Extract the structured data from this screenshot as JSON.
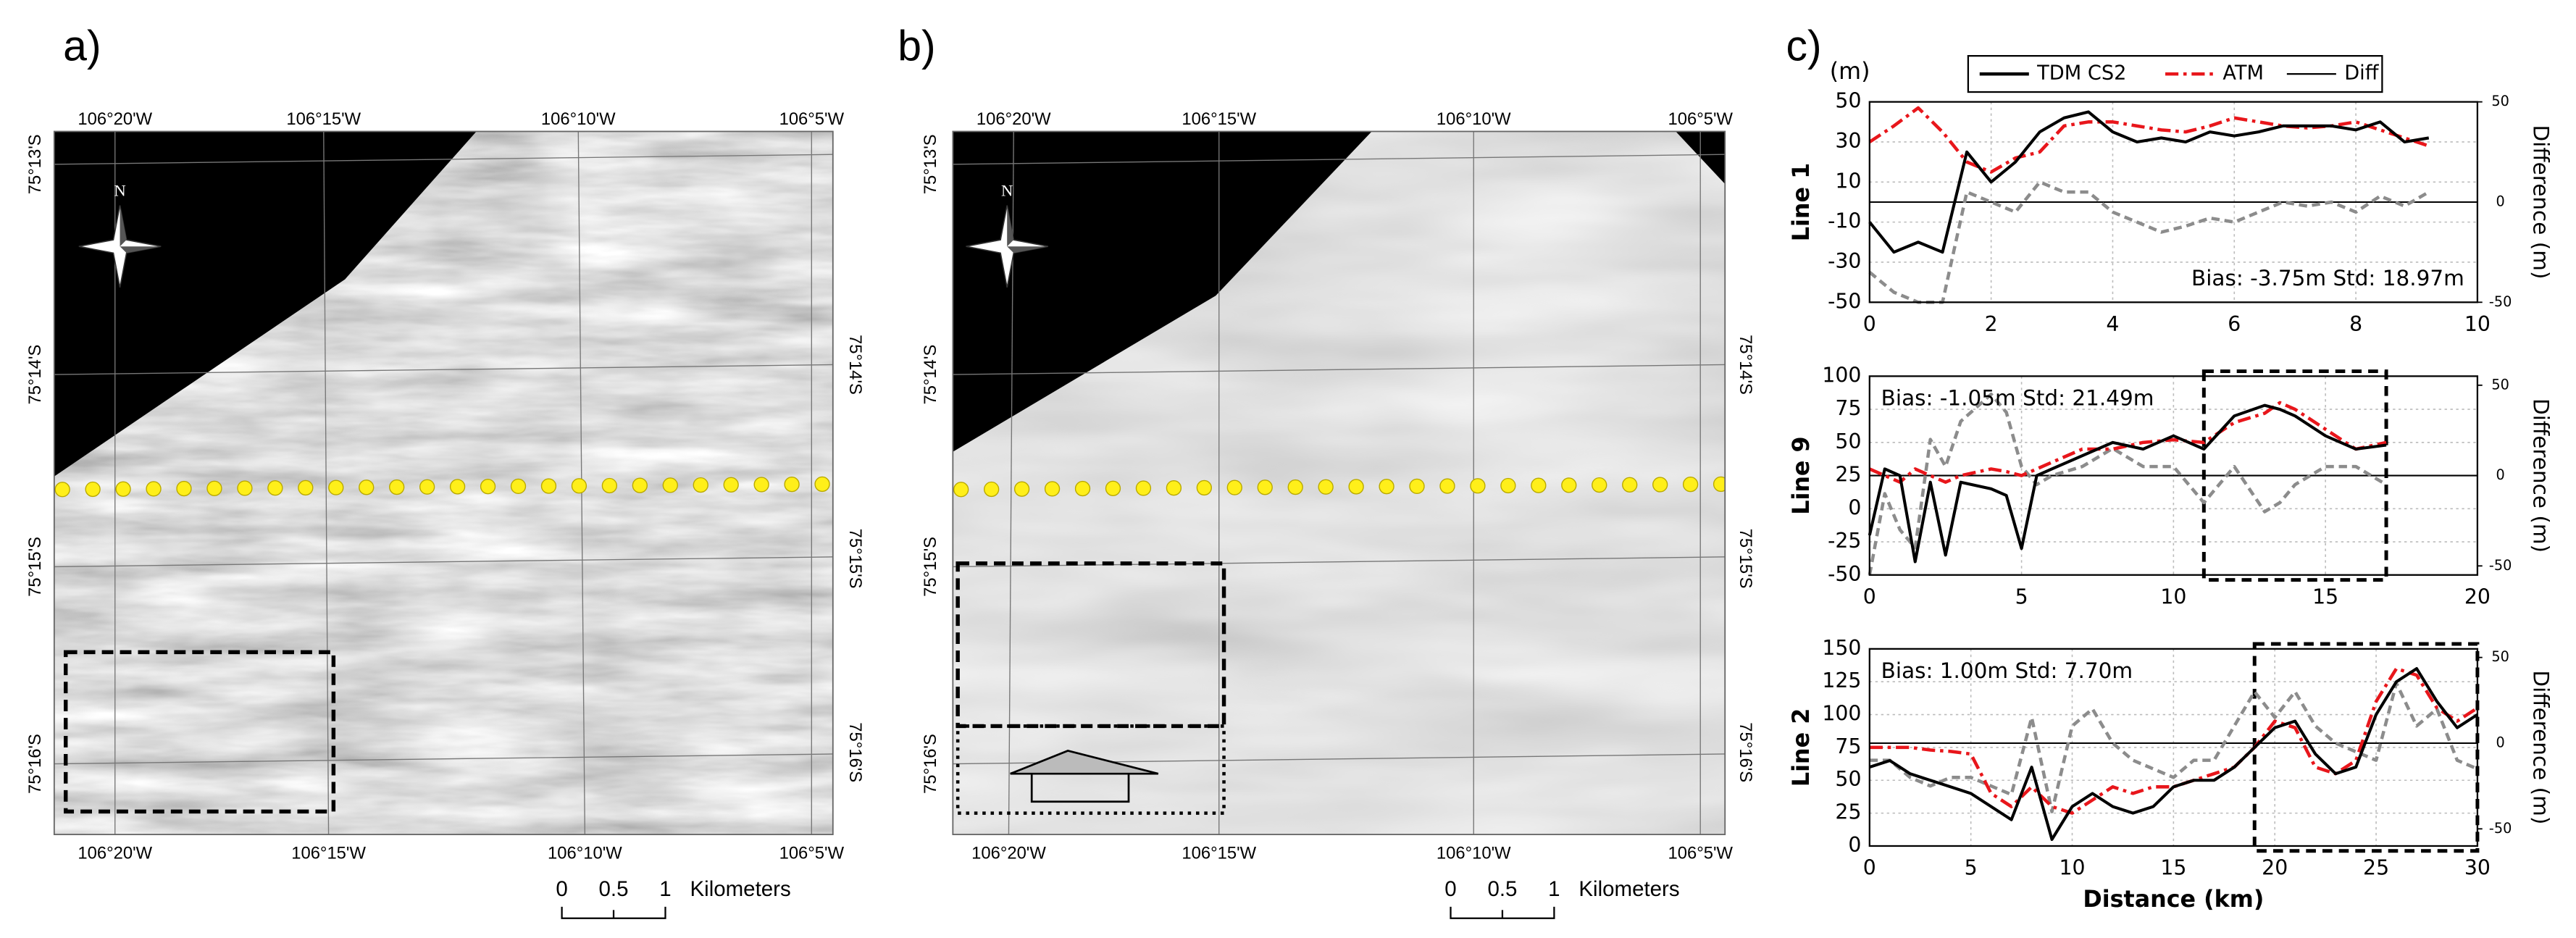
{
  "panels": [
    {
      "label": "a)",
      "top_lon": [
        "106°20'W",
        "106°15'W",
        "106°10'W",
        "106°5'W"
      ],
      "bottom_lon": [
        "106°20'W",
        "106°15'W",
        "106°10'W",
        "106°5'W"
      ],
      "left_lat": [
        "75°13'S",
        "75°14'S",
        "75°15'S",
        "75°16'S"
      ],
      "right_lat": [
        "75°14'S",
        "75°15'S",
        "75°16'S"
      ],
      "north": "N",
      "scale": [
        "0",
        "0.5",
        "1"
      ],
      "scale_unit": "Kilometers"
    },
    {
      "label": "b)",
      "top_lon": [
        "106°20'W",
        "106°15'W",
        "106°10'W",
        "106°5'W"
      ],
      "bottom_lon": [
        "106°20'W",
        "106°15'W",
        "106°10'W",
        "106°5'W"
      ],
      "left_lat": [
        "75°13'S",
        "75°14'S",
        "75°15'S",
        "75°16'S"
      ],
      "right_lat": [
        "75°14'S",
        "75°15'S",
        "75°16'S"
      ],
      "north": "N",
      "scale": [
        "0",
        "0.5",
        "1"
      ],
      "scale_unit": "Kilometers"
    }
  ],
  "chart_label": "c)",
  "chart_data": [
    {
      "type": "line",
      "y_unit": "(m)",
      "ylabel": "Line 1",
      "y2label": "Difference (m)",
      "grid": true,
      "annotation": "Bias: -3.75m Std: 18.97m",
      "xlim": [
        0,
        10
      ],
      "xticks": [
        0,
        2,
        4,
        6,
        8,
        10
      ],
      "ylim": [
        -50,
        50
      ],
      "yticks": [
        -50,
        -30,
        -10,
        10,
        30,
        50
      ],
      "y2lim": [
        -50,
        50
      ],
      "y2ticks": [
        -50,
        0,
        50
      ],
      "x": [
        0,
        0.4,
        0.8,
        1.2,
        1.6,
        2.0,
        2.4,
        2.8,
        3.2,
        3.6,
        4.0,
        4.4,
        4.8,
        5.2,
        5.6,
        6.0,
        6.4,
        6.8,
        7.2,
        7.6,
        8.0,
        8.4,
        8.8,
        9.2
      ],
      "series": [
        {
          "name": "TDM CS2",
          "color": "#000000",
          "style": "solid",
          "values": [
            -10,
            -25,
            -20,
            -25,
            25,
            10,
            20,
            35,
            42,
            45,
            35,
            30,
            32,
            30,
            35,
            33,
            35,
            38,
            38,
            38,
            36,
            40,
            30,
            32
          ]
        },
        {
          "name": "ATM",
          "color": "#e8161b",
          "style": "dash-dot",
          "values": [
            30,
            38,
            47,
            35,
            20,
            15,
            22,
            25,
            38,
            40,
            40,
            38,
            36,
            35,
            38,
            42,
            40,
            38,
            37,
            38,
            40,
            36,
            32,
            28
          ]
        },
        {
          "name": "Diff",
          "color": "#8c8c8c",
          "style": "dash",
          "axis": "y2",
          "values": [
            -35,
            -45,
            -50,
            -50,
            5,
            0,
            -5,
            10,
            5,
            5,
            -5,
            -10,
            -15,
            -12,
            -8,
            -10,
            -5,
            0,
            -2,
            0,
            -5,
            3,
            -2,
            5
          ]
        }
      ]
    },
    {
      "type": "line",
      "ylabel": "Line 9",
      "y2label": "Difference (m)",
      "grid": true,
      "annotation": "Bias: -1.05m Std: 21.49m",
      "highlight": [
        11,
        17
      ],
      "xlim": [
        0,
        20
      ],
      "xticks": [
        0,
        5,
        10,
        15,
        20
      ],
      "ylim": [
        -50,
        100
      ],
      "yticks": [
        -50,
        -25,
        0,
        25,
        50,
        75,
        100
      ],
      "y2lim": [
        -55,
        55
      ],
      "y2ticks": [
        -50,
        0,
        50
      ],
      "x": [
        0,
        0.5,
        1,
        1.5,
        2,
        2.5,
        3,
        4,
        4.5,
        5,
        5.5,
        6,
        7,
        8,
        9,
        10,
        11,
        12,
        13,
        13.5,
        14,
        15,
        16,
        17
      ],
      "series": [
        {
          "color": "#000000",
          "style": "solid",
          "values": [
            -20,
            30,
            25,
            -40,
            20,
            -35,
            20,
            15,
            10,
            -30,
            25,
            30,
            40,
            50,
            45,
            55,
            45,
            70,
            78,
            75,
            70,
            55,
            45,
            48
          ]
        },
        {
          "color": "#e8161b",
          "style": "dash-dot",
          "values": [
            30,
            25,
            20,
            30,
            25,
            20,
            25,
            30,
            28,
            25,
            30,
            35,
            45,
            45,
            50,
            52,
            50,
            65,
            72,
            80,
            75,
            60,
            45,
            50
          ]
        },
        {
          "color": "#8c8c8c",
          "style": "dash",
          "axis": "y2",
          "values": [
            -55,
            -10,
            -30,
            -40,
            20,
            5,
            30,
            45,
            35,
            5,
            -5,
            0,
            5,
            15,
            5,
            5,
            -15,
            5,
            -20,
            -15,
            -5,
            5,
            5,
            -5
          ]
        }
      ]
    },
    {
      "type": "line",
      "ylabel": "Line 2",
      "y2label": "Difference (m)",
      "xlabel": "Distance (km)",
      "grid": true,
      "annotation": "Bias: 1.00m Std: 7.70m",
      "highlight": [
        19,
        30
      ],
      "xlim": [
        0,
        30
      ],
      "xticks": [
        0,
        5,
        10,
        15,
        20,
        25,
        30
      ],
      "ylim": [
        0,
        150
      ],
      "yticks": [
        0,
        25,
        50,
        75,
        100,
        125,
        150
      ],
      "y2lim": [
        -60,
        55
      ],
      "y2ticks": [
        -50,
        0,
        50
      ],
      "x": [
        0,
        1,
        2,
        3,
        4,
        5,
        6,
        7,
        8,
        9,
        10,
        11,
        12,
        13,
        14,
        15,
        16,
        17,
        18,
        19,
        20,
        21,
        22,
        23,
        24,
        25,
        26,
        27,
        28,
        29,
        30
      ],
      "series": [
        {
          "color": "#000000",
          "style": "solid",
          "values": [
            60,
            65,
            55,
            50,
            45,
            40,
            30,
            20,
            60,
            5,
            30,
            40,
            30,
            25,
            30,
            45,
            50,
            50,
            60,
            75,
            90,
            95,
            70,
            55,
            60,
            100,
            125,
            135,
            110,
            90,
            100
          ]
        },
        {
          "color": "#e8161b",
          "style": "dash-dot",
          "values": [
            75,
            75,
            75,
            73,
            72,
            70,
            40,
            30,
            45,
            30,
            25,
            35,
            45,
            40,
            45,
            45,
            50,
            55,
            60,
            75,
            95,
            90,
            60,
            55,
            65,
            110,
            135,
            130,
            105,
            95,
            105
          ]
        },
        {
          "color": "#8c8c8c",
          "style": "dash",
          "axis": "y2",
          "values": [
            -10,
            -10,
            -20,
            -25,
            -20,
            -20,
            -25,
            -30,
            15,
            -40,
            10,
            20,
            0,
            -10,
            -15,
            -20,
            -10,
            -10,
            10,
            30,
            15,
            30,
            10,
            0,
            -5,
            -10,
            35,
            10,
            20,
            -10,
            -15
          ]
        }
      ]
    }
  ]
}
